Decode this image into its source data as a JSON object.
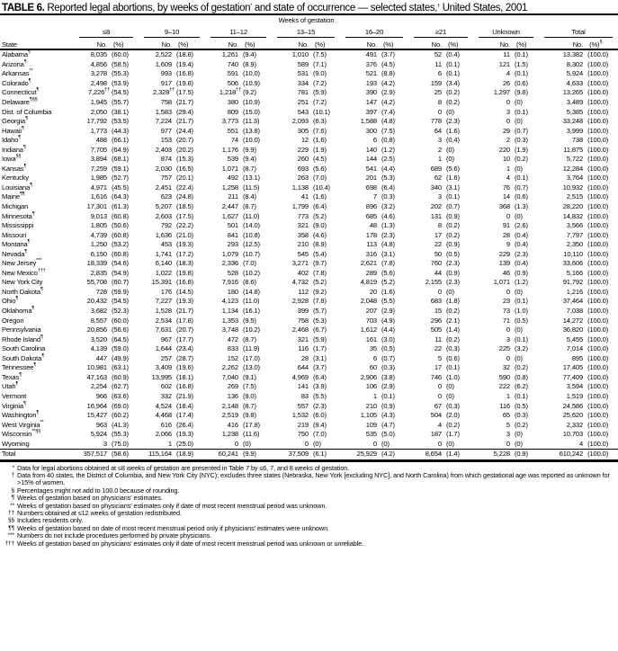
{
  "title_label": "TABLE 6.",
  "title_text": "Reported legal abortions, by weeks of gestation",
  "title_mark1": "*",
  "title_text2": "and state of occurrence — selected states,",
  "title_mark2": "†",
  "title_text3": "United States, 2001",
  "header": {
    "weeks_of_gestation": "Weeks of gestation",
    "state": "State",
    "groups": [
      "≤8",
      "9–10",
      "11–12",
      "13–15",
      "16–20",
      "≥21",
      "Unknown",
      "Total"
    ],
    "no": "No.",
    "pct": "(%)",
    "total_pct_mark": "§"
  },
  "rows": [
    {
      "state": "Alabama",
      "mark": "¶",
      "cells": [
        "8,035",
        "(60.0)",
        "2,522",
        "(18.8)",
        "1,261",
        "(9.4)",
        "1,010",
        "(7.5)",
        "491",
        "(3.7)",
        "52",
        "(0.4)",
        "11",
        "(0.1)",
        "13,382",
        "(100.0)"
      ]
    },
    {
      "state": "Arizona",
      "mark": "¶",
      "cells": [
        "4,856",
        "(58.5)",
        "1,609",
        "(19.4)",
        "740",
        "(8.9)",
        "589",
        "(7.1)",
        "376",
        "(4.5)",
        "11",
        "(0.1)",
        "121",
        "(1.5)",
        "8,302",
        "(100.0)"
      ]
    },
    {
      "state": "Arkansas",
      "mark": "**",
      "cells": [
        "3,278",
        "(55.3)",
        "993",
        "(16.8)",
        "591",
        "(10.0)",
        "531",
        "(9.0)",
        "521",
        "(8.8)",
        "6",
        "(0.1)",
        "4",
        "(0.1)",
        "5,924",
        "(100.0)"
      ]
    },
    {
      "state": "Colorado",
      "mark": "¶",
      "cells": [
        "2,498",
        "(53.9)",
        "917",
        "(19.8)",
        "506",
        "(10.9)",
        "334",
        "(7.2)",
        "193",
        "(4.2)",
        "159",
        "(3.4)",
        "26",
        "(0.6)",
        "4,633",
        "(100.0)"
      ]
    },
    {
      "state": "Connecticut",
      "mark": "¶",
      "cells": [
        "7,226",
        "(54.5)",
        "2,328",
        "(17.5)",
        "1,218",
        "(9.2)",
        "781",
        "(5.9)",
        "390",
        "(2.9)",
        "25",
        "(0.2)",
        "1,297",
        "(9.8)",
        "13,265",
        "(100.0)"
      ],
      "cell_marks": {
        "0": "††",
        "2": "††",
        "4": "††"
      }
    },
    {
      "state": "Delaware",
      "mark": "¶§§",
      "cells": [
        "1,945",
        "(55.7)",
        "758",
        "(21.7)",
        "380",
        "(10.9)",
        "251",
        "(7.2)",
        "147",
        "(4.2)",
        "8",
        "(0.2)",
        "0",
        "(0)",
        "3,489",
        "(100.0)"
      ]
    },
    {
      "state": "Dist. of Columbia",
      "mark": "",
      "cells": [
        "2,050",
        "(38.1)",
        "1,583",
        "(29.4)",
        "809",
        "(15.0)",
        "543",
        "(10.1)",
        "397",
        "(7.4)",
        "0",
        "(0)",
        "3",
        "(0.1)",
        "5,385",
        "(100.0)"
      ]
    },
    {
      "state": "Georgia",
      "mark": "¶",
      "cells": [
        "17,792",
        "(53.5)",
        "7,224",
        "(21.7)",
        "3,773",
        "(11.3)",
        "2,093",
        "(6.3)",
        "1,588",
        "(4.8)",
        "778",
        "(2.3)",
        "0",
        "(0)",
        "33,248",
        "(100.0)"
      ]
    },
    {
      "state": "Hawaii",
      "mark": "¶",
      "cells": [
        "1,773",
        "(44.3)",
        "977",
        "(24.4)",
        "551",
        "(13.8)",
        "305",
        "(7.6)",
        "300",
        "(7.5)",
        "64",
        "(1.6)",
        "29",
        "(0.7)",
        "3,999",
        "(100.0)"
      ]
    },
    {
      "state": "Idaho",
      "mark": "¶",
      "cells": [
        "488",
        "(66.1)",
        "153",
        "(20.7)",
        "74",
        "(10.0)",
        "12",
        "(1.6)",
        "6",
        "(0.8)",
        "3",
        "(0.4)",
        "2",
        "(0.3)",
        "738",
        "(100.0)"
      ]
    },
    {
      "state": "Indiana",
      "mark": "¶",
      "cells": [
        "7,705",
        "(64.9)",
        "2,403",
        "(20.2)",
        "1,176",
        "(9.9)",
        "229",
        "(1.9)",
        "140",
        "(1.2)",
        "2",
        "(0)",
        "220",
        "(1.9)",
        "11,875",
        "(100.0)"
      ]
    },
    {
      "state": "Iowa",
      "mark": "§§",
      "cells": [
        "3,894",
        "(68.1)",
        "874",
        "(15.3)",
        "539",
        "(9.4)",
        "260",
        "(4.5)",
        "144",
        "(2.5)",
        "1",
        "(0)",
        "10",
        "(0.2)",
        "5,722",
        "(100.0)"
      ]
    },
    {
      "state": "Kansas",
      "mark": "¶",
      "cells": [
        "7,259",
        "(59.1)",
        "2,030",
        "(16.5)",
        "1,071",
        "(8.7)",
        "693",
        "(5.6)",
        "541",
        "(4.4)",
        "689",
        "(5.6)",
        "1",
        "(0)",
        "12,284",
        "(100.0)"
      ]
    },
    {
      "state": "Kentucky",
      "mark": "",
      "cells": [
        "1,985",
        "(52.7)",
        "757",
        "(20.1)",
        "492",
        "(13.1)",
        "263",
        "(7.0)",
        "201",
        "(5.3)",
        "62",
        "(1.6)",
        "4",
        "(0.1)",
        "3,764",
        "(100.0)"
      ]
    },
    {
      "state": "Louisiana",
      "mark": "¶",
      "cells": [
        "4,971",
        "(45.5)",
        "2,451",
        "(22.4)",
        "1,258",
        "(11.5)",
        "1,138",
        "(10.4)",
        "698",
        "(6.4)",
        "340",
        "(3.1)",
        "76",
        "(0.7)",
        "10,932",
        "(100.0)"
      ]
    },
    {
      "state": "Maine",
      "mark": "¶¶",
      "cells": [
        "1,616",
        "(64.3)",
        "623",
        "(24.8)",
        "211",
        "(8.4)",
        "41",
        "(1.6)",
        "7",
        "(0.3)",
        "3",
        "(0.1)",
        "14",
        "(0.6)",
        "2,515",
        "(100.0)"
      ]
    },
    {
      "state": "Michigan",
      "mark": "",
      "cells": [
        "17,301",
        "(61.3)",
        "5,207",
        "(18.5)",
        "2,447",
        "(8.7)",
        "1,799",
        "(6.4)",
        "896",
        "(3.2)",
        "202",
        "(0.7)",
        "368",
        "(1.3)",
        "28,220",
        "(100.0)"
      ]
    },
    {
      "state": "Minnesota",
      "mark": "¶",
      "cells": [
        "9,013",
        "(60.8)",
        "2,603",
        "(17.5)",
        "1,627",
        "(11.0)",
        "773",
        "(5.2)",
        "685",
        "(4.6)",
        "131",
        "(0.9)",
        "0",
        "(0)",
        "14,832",
        "(100.0)"
      ]
    },
    {
      "state": "Mississippi",
      "mark": "",
      "cells": [
        "1,805",
        "(50.6)",
        "792",
        "(22.2)",
        "501",
        "(14.0)",
        "321",
        "(9.0)",
        "48",
        "(1.3)",
        "8",
        "(0.2)",
        "91",
        "(2.6)",
        "3,566",
        "(100.0)"
      ]
    },
    {
      "state": "Missouri",
      "mark": "",
      "cells": [
        "4,739",
        "(60.8)",
        "1,636",
        "(21.0)",
        "841",
        "(10.8)",
        "358",
        "(4.6)",
        "178",
        "(2.3)",
        "17",
        "(0.2)",
        "28",
        "(0.4)",
        "7,797",
        "(100.0)"
      ]
    },
    {
      "state": "Montana",
      "mark": "¶",
      "cells": [
        "1,250",
        "(53.2)",
        "453",
        "(19.3)",
        "293",
        "(12.5)",
        "210",
        "(8.9)",
        "113",
        "(4.8)",
        "22",
        "(0.9)",
        "9",
        "(0.4)",
        "2,350",
        "(100.0)"
      ]
    },
    {
      "state": "Nevada",
      "mark": "¶",
      "cells": [
        "6,150",
        "(60.8)",
        "1,741",
        "(17.2)",
        "1,079",
        "(10.7)",
        "545",
        "(5.4)",
        "316",
        "(3.1)",
        "50",
        "(0.5)",
        "229",
        "(2.3)",
        "10,110",
        "(100.0)"
      ]
    },
    {
      "state": "New Jersey",
      "mark": "***",
      "cells": [
        "18,339",
        "(54.6)",
        "6,140",
        "(18.3)",
        "2,336",
        "(7.0)",
        "3,271",
        "(9.7)",
        "2,621",
        "(7.8)",
        "760",
        "(2.3)",
        "139",
        "(0.4)",
        "33,606",
        "(100.0)"
      ]
    },
    {
      "state": "New Mexico",
      "mark": "†††",
      "cells": [
        "2,835",
        "(54.9)",
        "1,022",
        "(19.8)",
        "528",
        "(10.2)",
        "402",
        "(7.8)",
        "289",
        "(5.6)",
        "44",
        "(0.9)",
        "46",
        "(0.9)",
        "5,166",
        "(100.0)"
      ]
    },
    {
      "state": "New York City",
      "mark": "",
      "cells": [
        "55,708",
        "(60.7)",
        "15,391",
        "(16.8)",
        "7,916",
        "(8.6)",
        "4,732",
        "(5.2)",
        "4,819",
        "(5.2)",
        "2,155",
        "(2.3)",
        "1,071",
        "(1.2)",
        "91,792",
        "(100.0)"
      ]
    },
    {
      "state": "North Dakota",
      "mark": "¶",
      "cells": [
        "728",
        "(59.9)",
        "176",
        "(14.5)",
        "180",
        "(14.8)",
        "112",
        "(9.2)",
        "20",
        "(1.6)",
        "0",
        "(0)",
        "0",
        "(0)",
        "1,216",
        "(100.0)"
      ]
    },
    {
      "state": "Ohio",
      "mark": "¶",
      "cells": [
        "20,432",
        "(54.5)",
        "7,227",
        "(19.3)",
        "4,123",
        "(11.0)",
        "2,928",
        "(7.8)",
        "2,048",
        "(5.5)",
        "683",
        "(1.8)",
        "23",
        "(0.1)",
        "37,464",
        "(100.0)"
      ]
    },
    {
      "state": "Oklahoma",
      "mark": "¶",
      "cells": [
        "3,682",
        "(52.3)",
        "1,528",
        "(21.7)",
        "1,134",
        "(16.1)",
        "399",
        "(5.7)",
        "207",
        "(2.9)",
        "15",
        "(0.2)",
        "73",
        "(1.0)",
        "7,038",
        "(100.0)"
      ]
    },
    {
      "state": "Oregon",
      "mark": "",
      "cells": [
        "8,557",
        "(60.0)",
        "2,534",
        "(17.8)",
        "1,353",
        "(9.5)",
        "758",
        "(5.3)",
        "703",
        "(4.9)",
        "296",
        "(2.1)",
        "71",
        "(0.5)",
        "14,272",
        "(100.0)"
      ]
    },
    {
      "state": "Pennsylvania",
      "mark": "",
      "cells": [
        "20,856",
        "(56.6)",
        "7,631",
        "(20.7)",
        "3,748",
        "(10.2)",
        "2,468",
        "(6.7)",
        "1,612",
        "(4.4)",
        "505",
        "(1.4)",
        "0",
        "(0)",
        "36,820",
        "(100.0)"
      ]
    },
    {
      "state": "Rhode Island",
      "mark": "¶",
      "cells": [
        "3,520",
        "(64.5)",
        "967",
        "(17.7)",
        "472",
        "(8.7)",
        "321",
        "(5.9)",
        "161",
        "(3.0)",
        "11",
        "(0.2)",
        "3",
        "(0.1)",
        "5,455",
        "(100.0)"
      ]
    },
    {
      "state": "South Carolina",
      "mark": "",
      "cells": [
        "4,139",
        "(59.0)",
        "1,644",
        "(23.4)",
        "833",
        "(11.9)",
        "116",
        "(1.7)",
        "35",
        "(0.5)",
        "22",
        "(0.3)",
        "225",
        "(3.2)",
        "7,014",
        "(100.0)"
      ]
    },
    {
      "state": "South Dakota",
      "mark": "¶",
      "cells": [
        "447",
        "(49.9)",
        "257",
        "(28.7)",
        "152",
        "(17.0)",
        "28",
        "(3.1)",
        "6",
        "(0.7)",
        "5",
        "(0.6)",
        "0",
        "(0)",
        "895",
        "(100.0)"
      ]
    },
    {
      "state": "Tennessee",
      "mark": "¶",
      "cells": [
        "10,981",
        "(63.1)",
        "3,409",
        "(19.6)",
        "2,262",
        "(13.0)",
        "644",
        "(3.7)",
        "60",
        "(0.3)",
        "17",
        "(0.1)",
        "32",
        "(0.2)",
        "17,405",
        "(100.0)"
      ]
    },
    {
      "state": "Texas",
      "mark": "¶",
      "cells": [
        "47,163",
        "(60.9)",
        "13,995",
        "(18.1)",
        "7,040",
        "(9.1)",
        "4,969",
        "(6.4)",
        "2,906",
        "(3.8)",
        "746",
        "(1.0)",
        "590",
        "(0.8)",
        "77,409",
        "(100.0)"
      ]
    },
    {
      "state": "Utah",
      "mark": "¶",
      "cells": [
        "2,254",
        "(62.7)",
        "602",
        "(16.8)",
        "269",
        "(7.5)",
        "141",
        "(3.9)",
        "106",
        "(2.9)",
        "0",
        "(0)",
        "222",
        "(6.2)",
        "3,594",
        "(100.0)"
      ]
    },
    {
      "state": "Vermont",
      "mark": "",
      "cells": [
        "966",
        "(63.6)",
        "332",
        "(21.9)",
        "136",
        "(9.0)",
        "83",
        "(5.5)",
        "1",
        "(0.1)",
        "0",
        "(0)",
        "1",
        "(0.1)",
        "1,519",
        "(100.0)"
      ]
    },
    {
      "state": "Virginia",
      "mark": "¶",
      "cells": [
        "16,964",
        "(69.0)",
        "4,524",
        "(18.4)",
        "2,148",
        "(8.7)",
        "557",
        "(2.3)",
        "210",
        "(0.9)",
        "67",
        "(0.3)",
        "116",
        "(0.5)",
        "24,586",
        "(100.0)"
      ]
    },
    {
      "state": "Washington",
      "mark": "¶",
      "cells": [
        "15,427",
        "(60.2)",
        "4,468",
        "(17.4)",
        "2,519",
        "(9.8)",
        "1,532",
        "(6.0)",
        "1,105",
        "(4.3)",
        "504",
        "(2.0)",
        "65",
        "(0.3)",
        "25,620",
        "(100.0)"
      ]
    },
    {
      "state": "West Virginia",
      "mark": "**",
      "cells": [
        "963",
        "(41.3)",
        "616",
        "(26.4)",
        "416",
        "(17.8)",
        "219",
        "(9.4)",
        "109",
        "(4.7)",
        "4",
        "(0.2)",
        "5",
        "(0.2)",
        "2,332",
        "(100.0)"
      ]
    },
    {
      "state": "Wisconsin",
      "mark": "**§§",
      "cells": [
        "5,924",
        "(55.3)",
        "2,066",
        "(19.3)",
        "1,238",
        "(11.6)",
        "750",
        "(7.0)",
        "535",
        "(5.0)",
        "187",
        "(1.7)",
        "3",
        "(0)",
        "10,703",
        "(100.0)"
      ]
    },
    {
      "state": "Wyoming",
      "mark": "",
      "cells": [
        "3",
        "(75.0)",
        "1",
        "(25.0)",
        "0",
        "(0)",
        "0",
        "(0)",
        "0",
        "(0)",
        "0",
        "(0)",
        "0",
        "(0)",
        "4",
        "(100.0)"
      ]
    }
  ],
  "total_row": {
    "state": "Total",
    "mark": "",
    "cells": [
      "357,517",
      "(58.6)",
      "115,164",
      "(18.9)",
      "60,241",
      "(9.9)",
      "37,509",
      "(6.1)",
      "25,929",
      "(4.2)",
      "8,654",
      "(1.4)",
      "5,228",
      "(0.9)",
      "610,242",
      "(100.0)"
    ]
  },
  "footnotes": [
    {
      "sym": "*",
      "text": "Data for legal abortions obtained at ≤8 weeks of gestation are presented in Table 7 by ≤6, 7, and 8 weeks of gestation."
    },
    {
      "sym": "†",
      "text": "Data from 40 states, the District of Columbia, and New York City (NYC); excludes three states (Nebraska, New York [excluding NYC], and North Carolina) from which gestational age was reported as unknown for >15% of women."
    },
    {
      "sym": "§",
      "text": "Percentages might not add to 100.0 because of rounding."
    },
    {
      "sym": "¶",
      "text": "Weeks of gestation based on physicians' estimates."
    },
    {
      "sym": "**",
      "text": "Weeks of gestation based on physicians' estimates only if date of most recent menstrual period was unknown."
    },
    {
      "sym": "††",
      "text": "Numbers obtained at ≤12 weeks of gestation redistributed."
    },
    {
      "sym": "§§",
      "text": "Includes residents only."
    },
    {
      "sym": "¶¶",
      "text": "Weeks of gestation based on date of most recent menstrual period only if physicians' estimates were unknown."
    },
    {
      "sym": "***",
      "text": "Numbers do not include procedures performed by private physicians."
    },
    {
      "sym": "†††",
      "text": "Weeks of gestation based on physicians' estimates only if date of most recent menstrual period was unknown or unreliable."
    }
  ]
}
